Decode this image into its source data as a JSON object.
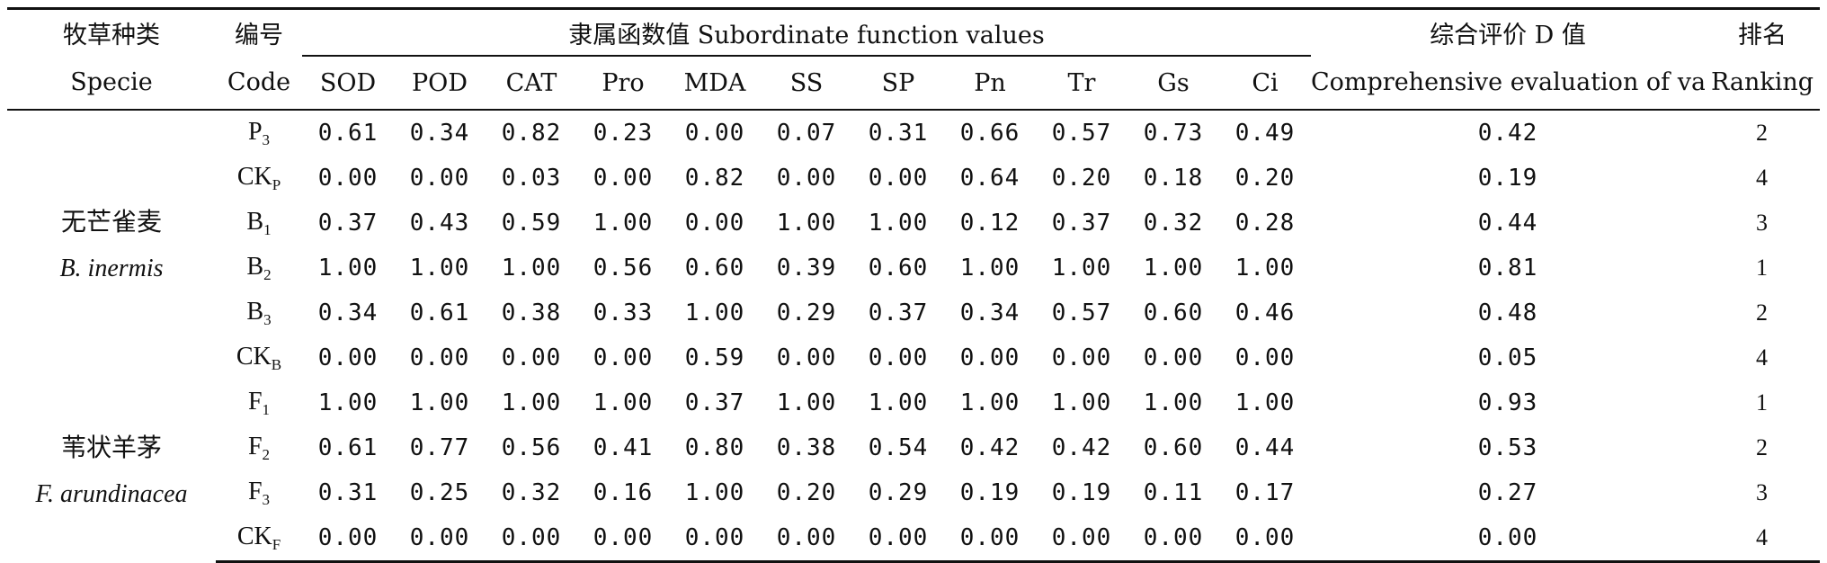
{
  "table": {
    "headers": {
      "species_cn": "牧草种类",
      "species_en": "Specie",
      "code_cn": "编号",
      "code_en": "Code",
      "subordinate": "隶属函数值 Subordinate function values",
      "indicators": [
        "SOD",
        "POD",
        "CAT",
        "Pro",
        "MDA",
        "SS",
        "SP",
        "Pn",
        "Tr",
        "Gs",
        "Ci"
      ],
      "comprehensive_cn": "综合评价 D 值",
      "comprehensive_en": "Comprehensive evaluation of value",
      "ranking_cn": "排名",
      "ranking_en": "Ranking"
    },
    "groups": [
      {
        "species_cn": "无芒雀麦",
        "species_latin": "B. inermis",
        "rows": [
          {
            "code": "P",
            "sub": "3",
            "values": [
              "0.61",
              "0.34",
              "0.82",
              "0.23",
              "0.00",
              "0.07",
              "0.31",
              "0.66",
              "0.57",
              "0.73",
              "0.49"
            ],
            "d": "0.42",
            "rank": "2"
          },
          {
            "code": "CK",
            "sub": "P",
            "values": [
              "0.00",
              "0.00",
              "0.03",
              "0.00",
              "0.82",
              "0.00",
              "0.00",
              "0.64",
              "0.20",
              "0.18",
              "0.20"
            ],
            "d": "0.19",
            "rank": "4"
          },
          {
            "code": "B",
            "sub": "1",
            "values": [
              "0.37",
              "0.43",
              "0.59",
              "1.00",
              "0.00",
              "1.00",
              "1.00",
              "0.12",
              "0.37",
              "0.32",
              "0.28"
            ],
            "d": "0.44",
            "rank": "3"
          },
          {
            "code": "B",
            "sub": "2",
            "values": [
              "1.00",
              "1.00",
              "1.00",
              "0.56",
              "0.60",
              "0.39",
              "0.60",
              "1.00",
              "1.00",
              "1.00",
              "1.00"
            ],
            "d": "0.81",
            "rank": "1"
          },
          {
            "code": "B",
            "sub": "3",
            "values": [
              "0.34",
              "0.61",
              "0.38",
              "0.33",
              "1.00",
              "0.29",
              "0.37",
              "0.34",
              "0.57",
              "0.60",
              "0.46"
            ],
            "d": "0.48",
            "rank": "2"
          },
          {
            "code": "CK",
            "sub": "B",
            "values": [
              "0.00",
              "0.00",
              "0.00",
              "0.00",
              "0.59",
              "0.00",
              "0.00",
              "0.00",
              "0.00",
              "0.00",
              "0.00"
            ],
            "d": "0.05",
            "rank": "4"
          }
        ]
      },
      {
        "species_cn": "苇状羊茅",
        "species_latin": "F. arundinacea",
        "rows": [
          {
            "code": "F",
            "sub": "1",
            "values": [
              "1.00",
              "1.00",
              "1.00",
              "1.00",
              "0.37",
              "1.00",
              "1.00",
              "1.00",
              "1.00",
              "1.00",
              "1.00"
            ],
            "d": "0.93",
            "rank": "1"
          },
          {
            "code": "F",
            "sub": "2",
            "values": [
              "0.61",
              "0.77",
              "0.56",
              "0.41",
              "0.80",
              "0.38",
              "0.54",
              "0.42",
              "0.42",
              "0.60",
              "0.44"
            ],
            "d": "0.53",
            "rank": "2"
          },
          {
            "code": "F",
            "sub": "3",
            "values": [
              "0.31",
              "0.25",
              "0.32",
              "0.16",
              "1.00",
              "0.20",
              "0.29",
              "0.19",
              "0.19",
              "0.11",
              "0.17"
            ],
            "d": "0.27",
            "rank": "3"
          },
          {
            "code": "CK",
            "sub": "F",
            "values": [
              "0.00",
              "0.00",
              "0.00",
              "0.00",
              "0.00",
              "0.00",
              "0.00",
              "0.00",
              "0.00",
              "0.00",
              "0.00"
            ],
            "d": "0.00",
            "rank": "4"
          }
        ]
      }
    ]
  }
}
